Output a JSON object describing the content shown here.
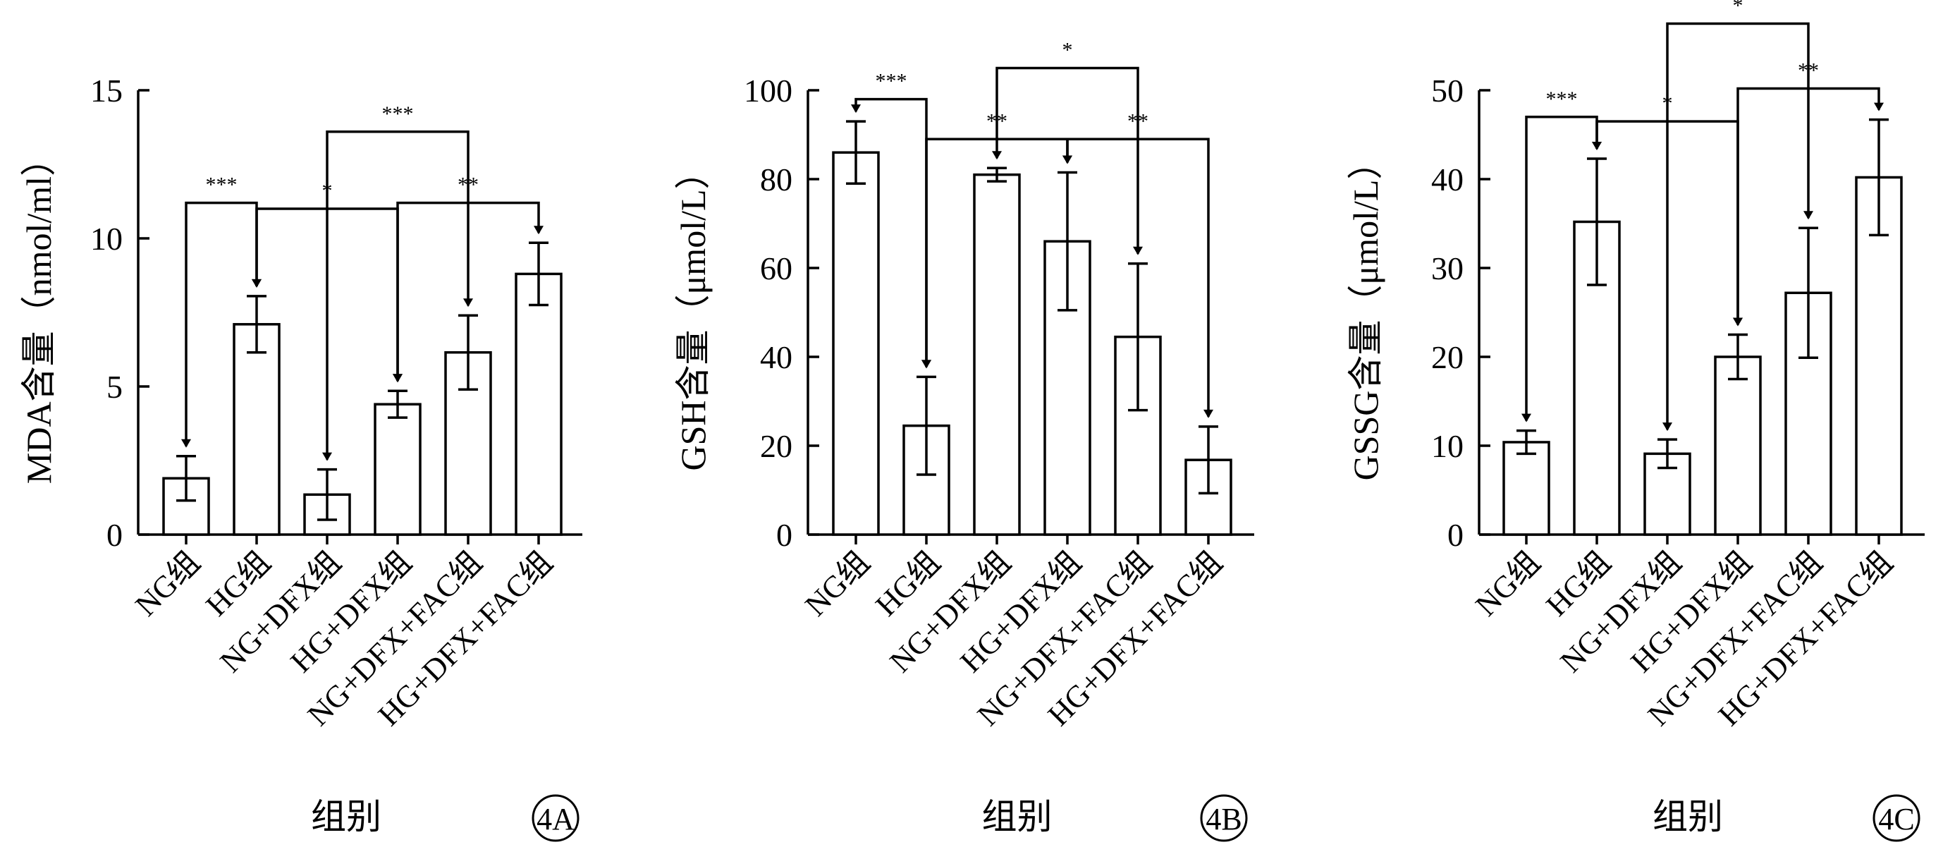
{
  "chart_data": [
    {
      "type": "bar",
      "panel": "4A",
      "ylabel": "MDA含量（nmol/ml）",
      "xlabel": "组别",
      "ylim": [
        0,
        15
      ],
      "yticks": [
        0,
        5,
        10,
        15
      ],
      "categories": [
        "NG组",
        "HG组",
        "NG+DFX组",
        "HG+DFX组",
        "NG+DFX+FAC组",
        "HG+DFX+FAC组"
      ],
      "values": [
        1.9,
        7.1,
        1.35,
        4.4,
        6.15,
        8.8
      ],
      "errors": [
        0.75,
        0.95,
        0.85,
        0.45,
        1.25,
        1.05
      ],
      "significance": [
        {
          "from": 0,
          "to": 1,
          "label": "***",
          "level": 11.2
        },
        {
          "from": 1,
          "to": 3,
          "label": "*",
          "level": 11.0
        },
        {
          "from": 3,
          "to": 5,
          "label": "**",
          "level": 11.2
        },
        {
          "from": 2,
          "to": 4,
          "label": "***",
          "level": 13.6
        }
      ]
    },
    {
      "type": "bar",
      "panel": "4B",
      "ylabel": "GSH含量（μmol/L）",
      "xlabel": "组别",
      "ylim": [
        0,
        100
      ],
      "yticks": [
        0,
        20,
        40,
        60,
        80,
        100
      ],
      "categories": [
        "NG组",
        "HG组",
        "NG+DFX组",
        "HG+DFX组",
        "NG+DFX+FAC组",
        "HG+DFX+FAC组"
      ],
      "values": [
        86,
        24.5,
        81,
        66,
        44.5,
        16.8
      ],
      "errors": [
        7,
        11,
        1.5,
        15.5,
        16.5,
        7.5
      ],
      "significance": [
        {
          "from": 0,
          "to": 1,
          "label": "***",
          "level": 98
        },
        {
          "from": 1,
          "to": 3,
          "label": "**",
          "level": 89
        },
        {
          "from": 3,
          "to": 5,
          "label": "**",
          "level": 89
        },
        {
          "from": 2,
          "to": 4,
          "label": "*",
          "level": 105
        }
      ]
    },
    {
      "type": "bar",
      "panel": "4C",
      "ylabel": "GSSG含量（μmol/L）",
      "xlabel": "组别",
      "ylim": [
        0,
        50
      ],
      "yticks": [
        0,
        10,
        20,
        30,
        40,
        50
      ],
      "categories": [
        "NG组",
        "HG组",
        "NG+DFX组",
        "HG+DFX组",
        "NG+DFX+FAC组",
        "HG+DFX+FAC组"
      ],
      "values": [
        10.4,
        35.2,
        9.1,
        20,
        27.2,
        40.2
      ],
      "errors": [
        1.3,
        7.1,
        1.6,
        2.5,
        7.3,
        6.5
      ],
      "significance": [
        {
          "from": 0,
          "to": 1,
          "label": "***",
          "level": 47
        },
        {
          "from": 1,
          "to": 3,
          "label": "*",
          "level": 46.5
        },
        {
          "from": 3,
          "to": 5,
          "label": "**",
          "level": 50.2
        },
        {
          "from": 2,
          "to": 4,
          "label": "*",
          "level": 57.5
        }
      ]
    }
  ]
}
